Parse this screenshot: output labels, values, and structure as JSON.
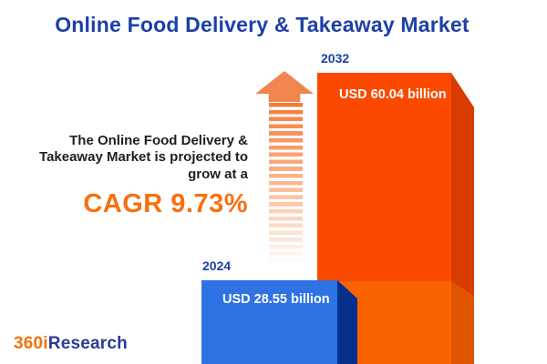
{
  "header": {
    "title": "Online Food Delivery & Takeaway Market"
  },
  "annotation": {
    "line": "The Online Food Delivery & Takeaway Market is projected to grow at a",
    "cagr": "CAGR 9.73%"
  },
  "chart_data": {
    "type": "bar",
    "title": "Online Food Delivery & Takeaway Market",
    "unit": "USD billion",
    "categories": [
      "2024",
      "2032"
    ],
    "values": [
      28.55,
      60.04
    ],
    "value_labels": [
      "USD 28.55 billion",
      "USD 60.04 billion"
    ],
    "cagr_percent": 9.73,
    "annotation": "The Online Food Delivery & Takeaway Market is projected to grow at a CAGR 9.73%",
    "legend_position": "none",
    "grid": false,
    "colors": {
      "bar_2024_face": "#2e72e4",
      "bar_2024_side": "#072f8c",
      "bar_2032_face_top": "#fb4a00",
      "bar_2032_face_bottom": "#fb6300",
      "bar_2032_side_top": "#d93c00",
      "bar_2032_side_bottom": "#e05500",
      "accent_orange": "#f8700f",
      "navy": "#1d3fa8",
      "arrow_orange": "#f0854e"
    }
  },
  "icons": {
    "growth_arrow": "dashed-up-arrow-icon"
  },
  "branding": {
    "logo_part1": "360i",
    "logo_part2": "Research"
  }
}
